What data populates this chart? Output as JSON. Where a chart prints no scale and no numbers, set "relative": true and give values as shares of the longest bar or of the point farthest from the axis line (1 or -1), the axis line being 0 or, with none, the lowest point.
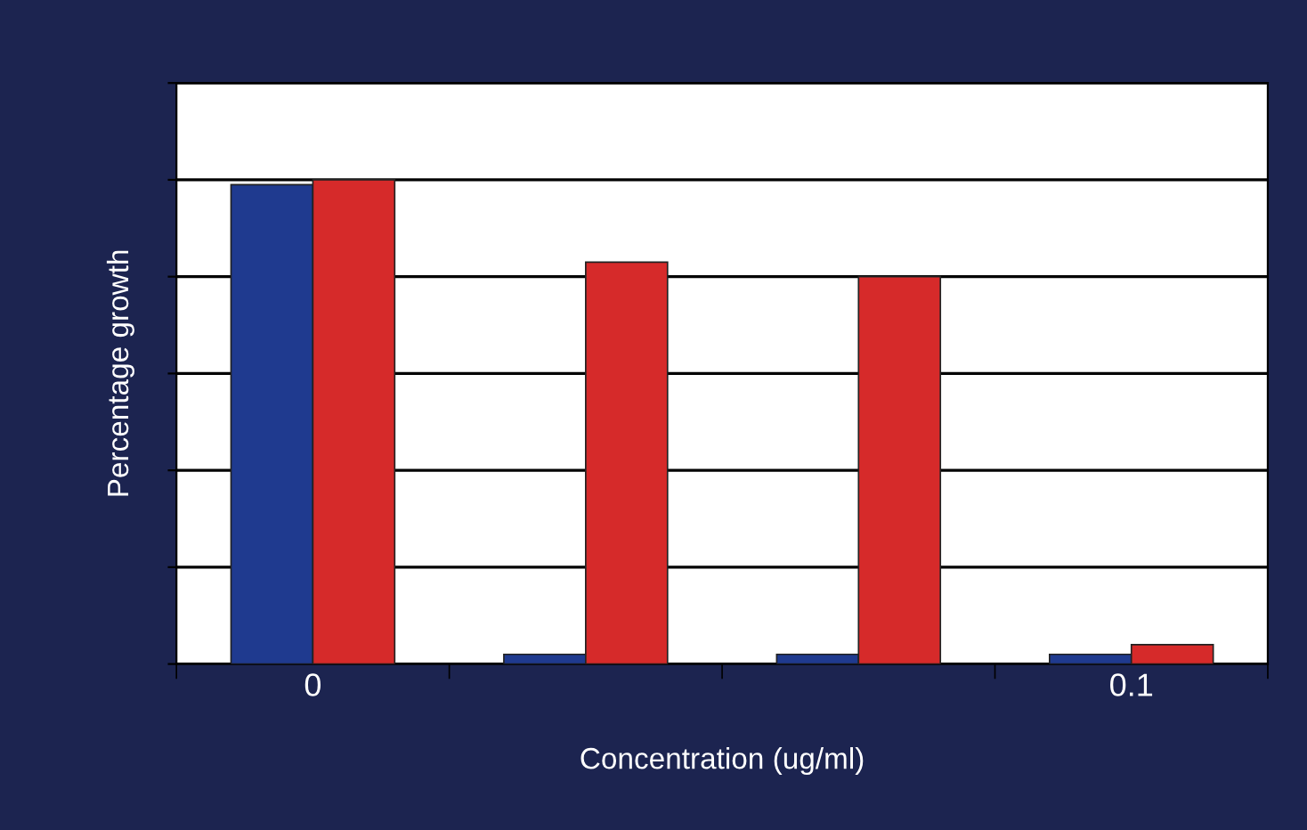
{
  "chart_data": {
    "type": "bar",
    "relative": true,
    "xlabel": "Concentration (ug/ml)",
    "ylabel": "Percentage growth",
    "categories": [
      "0",
      null,
      null,
      "0.1"
    ],
    "series": [
      {
        "color": "#1f3a8f",
        "values": [
          0.99,
          0.02,
          0.02,
          0.02
        ]
      },
      {
        "color": "#d62a2a",
        "values": [
          1,
          0.83,
          0.8,
          0.04
        ]
      }
    ],
    "grid": "y",
    "legend": false
  }
}
